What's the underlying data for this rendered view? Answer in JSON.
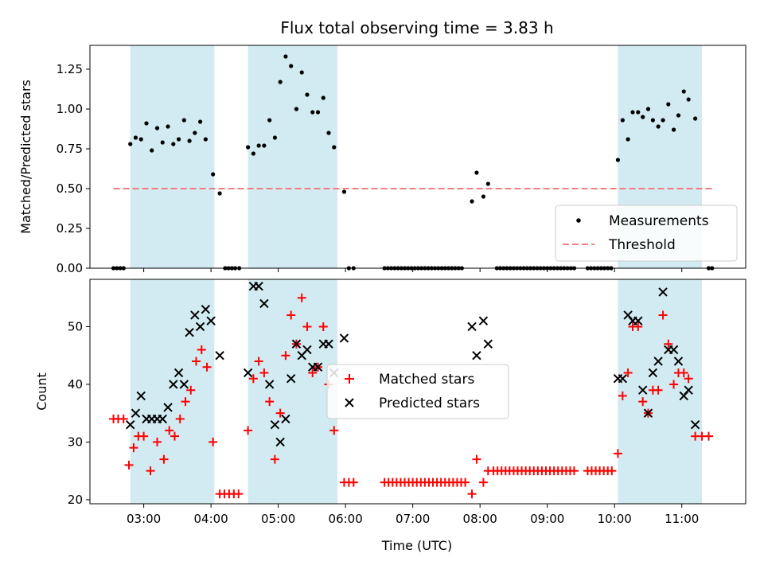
{
  "chart_data": {
    "type": "scatter",
    "title": "Flux total observing time = 3.83 h",
    "xlabel": "Time (UTC)",
    "x_ticks": [
      "03:00",
      "04:00",
      "05:00",
      "06:00",
      "07:00",
      "08:00",
      "09:00",
      "10:00",
      "11:00"
    ],
    "x_unit": "hours UTC",
    "xlim": [
      2.2,
      11.95
    ],
    "shaded_intervals": [
      [
        2.8,
        4.05
      ],
      [
        4.55,
        5.88
      ],
      [
        10.05,
        11.3
      ]
    ],
    "shade_color": "#add8e6",
    "top_panel": {
      "ylabel": "Matched/Predicted stars",
      "ylim": [
        0,
        1.4
      ],
      "y_ticks": [
        "0.00",
        "0.25",
        "0.50",
        "0.75",
        "1.00",
        "1.25"
      ],
      "threshold": {
        "value": 0.5,
        "x_range": [
          2.55,
          11.5
        ],
        "color": "#f08080"
      },
      "legend": {
        "placement": "lower right",
        "measurements_label": "Measurements",
        "threshold_label": "Threshold"
      },
      "measurements": [
        [
          2.55,
          0
        ],
        [
          2.6,
          0
        ],
        [
          2.65,
          0
        ],
        [
          2.7,
          0
        ],
        [
          2.8,
          0.78
        ],
        [
          2.88,
          0.82
        ],
        [
          2.96,
          0.81
        ],
        [
          3.04,
          0.91
        ],
        [
          3.12,
          0.74
        ],
        [
          3.2,
          0.88
        ],
        [
          3.28,
          0.79
        ],
        [
          3.36,
          0.89
        ],
        [
          3.44,
          0.78
        ],
        [
          3.52,
          0.81
        ],
        [
          3.6,
          0.93
        ],
        [
          3.68,
          0.8
        ],
        [
          3.76,
          0.85
        ],
        [
          3.84,
          0.92
        ],
        [
          3.92,
          0.81
        ],
        [
          4.03,
          0.59
        ],
        [
          4.13,
          0.47
        ],
        [
          4.21,
          0
        ],
        [
          4.26,
          0
        ],
        [
          4.31,
          0
        ],
        [
          4.36,
          0
        ],
        [
          4.42,
          0
        ],
        [
          4.55,
          0.76
        ],
        [
          4.63,
          0.72
        ],
        [
          4.71,
          0.77
        ],
        [
          4.79,
          0.77
        ],
        [
          4.87,
          0.93
        ],
        [
          4.95,
          0.82
        ],
        [
          5.03,
          1.17
        ],
        [
          5.11,
          1.33
        ],
        [
          5.19,
          1.27
        ],
        [
          5.27,
          1.0
        ],
        [
          5.35,
          1.23
        ],
        [
          5.43,
          1.09
        ],
        [
          5.51,
          0.98
        ],
        [
          5.59,
          0.98
        ],
        [
          5.67,
          1.07
        ],
        [
          5.75,
          0.85
        ],
        [
          5.83,
          0.76
        ],
        [
          5.98,
          0.48
        ],
        [
          6.05,
          0
        ],
        [
          6.12,
          0
        ],
        [
          6.58,
          0
        ],
        [
          6.63,
          0
        ],
        [
          6.68,
          0
        ],
        [
          6.73,
          0
        ],
        [
          6.78,
          0
        ],
        [
          6.83,
          0
        ],
        [
          6.88,
          0
        ],
        [
          6.93,
          0
        ],
        [
          6.98,
          0
        ],
        [
          7.03,
          0
        ],
        [
          7.08,
          0
        ],
        [
          7.13,
          0
        ],
        [
          7.18,
          0
        ],
        [
          7.23,
          0
        ],
        [
          7.28,
          0
        ],
        [
          7.33,
          0
        ],
        [
          7.38,
          0
        ],
        [
          7.43,
          0
        ],
        [
          7.48,
          0
        ],
        [
          7.53,
          0
        ],
        [
          7.58,
          0
        ],
        [
          7.63,
          0
        ],
        [
          7.68,
          0
        ],
        [
          7.73,
          0
        ],
        [
          7.88,
          0.42
        ],
        [
          7.95,
          0.6
        ],
        [
          8.05,
          0.45
        ],
        [
          8.12,
          0.53
        ],
        [
          8.25,
          0
        ],
        [
          8.3,
          0
        ],
        [
          8.35,
          0
        ],
        [
          8.4,
          0
        ],
        [
          8.45,
          0
        ],
        [
          8.5,
          0
        ],
        [
          8.55,
          0
        ],
        [
          8.6,
          0
        ],
        [
          8.65,
          0
        ],
        [
          8.7,
          0
        ],
        [
          8.75,
          0
        ],
        [
          8.8,
          0
        ],
        [
          8.85,
          0
        ],
        [
          8.9,
          0
        ],
        [
          8.95,
          0
        ],
        [
          9.0,
          0
        ],
        [
          9.05,
          0
        ],
        [
          9.1,
          0
        ],
        [
          9.15,
          0
        ],
        [
          9.2,
          0
        ],
        [
          9.25,
          0
        ],
        [
          9.3,
          0
        ],
        [
          9.35,
          0
        ],
        [
          9.4,
          0
        ],
        [
          9.6,
          0
        ],
        [
          9.65,
          0
        ],
        [
          9.7,
          0
        ],
        [
          9.75,
          0
        ],
        [
          9.8,
          0
        ],
        [
          9.85,
          0
        ],
        [
          9.9,
          0
        ],
        [
          9.95,
          0
        ],
        [
          10.05,
          0.68
        ],
        [
          10.12,
          0.93
        ],
        [
          10.2,
          0.81
        ],
        [
          10.27,
          0.98
        ],
        [
          10.35,
          0.98
        ],
        [
          10.42,
          0.95
        ],
        [
          10.5,
          1.0
        ],
        [
          10.57,
          0.93
        ],
        [
          10.65,
          0.89
        ],
        [
          10.72,
          0.93
        ],
        [
          10.8,
          1.03
        ],
        [
          10.88,
          0.87
        ],
        [
          10.95,
          0.96
        ],
        [
          11.03,
          1.11
        ],
        [
          11.1,
          1.06
        ],
        [
          11.2,
          0.94
        ],
        [
          11.4,
          0
        ],
        [
          11.45,
          0
        ]
      ]
    },
    "bottom_panel": {
      "ylabel": "Count",
      "ylim": [
        19.3,
        58.2
      ],
      "y_ticks": [
        "20",
        "30",
        "40",
        "50"
      ],
      "legend": {
        "placement": "center",
        "matched_label": "Matched stars",
        "predicted_label": "Predicted stars"
      },
      "matched_stars": [
        [
          2.55,
          34
        ],
        [
          2.62,
          34
        ],
        [
          2.7,
          34
        ],
        [
          2.78,
          26
        ],
        [
          2.85,
          29
        ],
        [
          2.92,
          31
        ],
        [
          3.0,
          31
        ],
        [
          3.1,
          25
        ],
        [
          3.2,
          30
        ],
        [
          3.3,
          27
        ],
        [
          3.38,
          32
        ],
        [
          3.46,
          31
        ],
        [
          3.54,
          34
        ],
        [
          3.62,
          37
        ],
        [
          3.7,
          39
        ],
        [
          3.78,
          44
        ],
        [
          3.86,
          46
        ],
        [
          3.94,
          43
        ],
        [
          4.03,
          30
        ],
        [
          4.13,
          21
        ],
        [
          4.2,
          21
        ],
        [
          4.27,
          21
        ],
        [
          4.34,
          21
        ],
        [
          4.41,
          21
        ],
        [
          4.55,
          32
        ],
        [
          4.63,
          41
        ],
        [
          4.71,
          44
        ],
        [
          4.79,
          42
        ],
        [
          4.87,
          37
        ],
        [
          4.95,
          27
        ],
        [
          5.03,
          35
        ],
        [
          5.11,
          45
        ],
        [
          5.19,
          52
        ],
        [
          5.27,
          47
        ],
        [
          5.35,
          55
        ],
        [
          5.43,
          50
        ],
        [
          5.51,
          42
        ],
        [
          5.59,
          43
        ],
        [
          5.67,
          50
        ],
        [
          5.75,
          40
        ],
        [
          5.83,
          32
        ],
        [
          5.98,
          23
        ],
        [
          6.05,
          23
        ],
        [
          6.12,
          23
        ],
        [
          6.58,
          23
        ],
        [
          6.64,
          23
        ],
        [
          6.7,
          23
        ],
        [
          6.76,
          23
        ],
        [
          6.82,
          23
        ],
        [
          6.88,
          23
        ],
        [
          6.94,
          23
        ],
        [
          7.0,
          23
        ],
        [
          7.06,
          23
        ],
        [
          7.12,
          23
        ],
        [
          7.18,
          23
        ],
        [
          7.24,
          23
        ],
        [
          7.3,
          23
        ],
        [
          7.36,
          23
        ],
        [
          7.42,
          23
        ],
        [
          7.48,
          23
        ],
        [
          7.54,
          23
        ],
        [
          7.6,
          23
        ],
        [
          7.66,
          23
        ],
        [
          7.72,
          23
        ],
        [
          7.78,
          23
        ],
        [
          7.88,
          21
        ],
        [
          7.95,
          27
        ],
        [
          8.05,
          23
        ],
        [
          8.12,
          25
        ],
        [
          8.2,
          25
        ],
        [
          8.26,
          25
        ],
        [
          8.32,
          25
        ],
        [
          8.38,
          25
        ],
        [
          8.44,
          25
        ],
        [
          8.5,
          25
        ],
        [
          8.56,
          25
        ],
        [
          8.62,
          25
        ],
        [
          8.68,
          25
        ],
        [
          8.74,
          25
        ],
        [
          8.8,
          25
        ],
        [
          8.86,
          25
        ],
        [
          8.92,
          25
        ],
        [
          8.98,
          25
        ],
        [
          9.04,
          25
        ],
        [
          9.1,
          25
        ],
        [
          9.16,
          25
        ],
        [
          9.22,
          25
        ],
        [
          9.28,
          25
        ],
        [
          9.34,
          25
        ],
        [
          9.4,
          25
        ],
        [
          9.6,
          25
        ],
        [
          9.66,
          25
        ],
        [
          9.72,
          25
        ],
        [
          9.78,
          25
        ],
        [
          9.84,
          25
        ],
        [
          9.9,
          25
        ],
        [
          9.96,
          25
        ],
        [
          10.05,
          28
        ],
        [
          10.12,
          38
        ],
        [
          10.2,
          42
        ],
        [
          10.27,
          50
        ],
        [
          10.35,
          50
        ],
        [
          10.42,
          37
        ],
        [
          10.5,
          35
        ],
        [
          10.57,
          39
        ],
        [
          10.65,
          39
        ],
        [
          10.72,
          52
        ],
        [
          10.8,
          47
        ],
        [
          10.88,
          40
        ],
        [
          10.95,
          42
        ],
        [
          11.03,
          42
        ],
        [
          11.1,
          41
        ],
        [
          11.2,
          31
        ],
        [
          11.3,
          31
        ],
        [
          11.4,
          31
        ]
      ],
      "predicted_stars": [
        [
          2.8,
          33
        ],
        [
          2.88,
          35
        ],
        [
          2.96,
          38
        ],
        [
          3.04,
          34
        ],
        [
          3.12,
          34
        ],
        [
          3.2,
          34
        ],
        [
          3.28,
          34
        ],
        [
          3.36,
          36
        ],
        [
          3.44,
          40
        ],
        [
          3.52,
          42
        ],
        [
          3.6,
          40
        ],
        [
          3.68,
          49
        ],
        [
          3.76,
          52
        ],
        [
          3.84,
          50
        ],
        [
          3.92,
          53
        ],
        [
          4.0,
          51
        ],
        [
          4.13,
          45
        ],
        [
          4.55,
          42
        ],
        [
          4.63,
          57
        ],
        [
          4.71,
          57
        ],
        [
          4.79,
          54
        ],
        [
          4.87,
          40
        ],
        [
          4.95,
          33
        ],
        [
          5.03,
          30
        ],
        [
          5.11,
          34
        ],
        [
          5.19,
          41
        ],
        [
          5.27,
          47
        ],
        [
          5.35,
          45
        ],
        [
          5.43,
          46
        ],
        [
          5.51,
          43
        ],
        [
          5.59,
          43
        ],
        [
          5.67,
          47
        ],
        [
          5.75,
          47
        ],
        [
          5.83,
          42
        ],
        [
          5.98,
          48
        ],
        [
          7.88,
          50
        ],
        [
          7.95,
          45
        ],
        [
          8.05,
          51
        ],
        [
          8.12,
          47
        ],
        [
          10.05,
          41
        ],
        [
          10.12,
          41
        ],
        [
          10.2,
          52
        ],
        [
          10.27,
          51
        ],
        [
          10.35,
          51
        ],
        [
          10.42,
          39
        ],
        [
          10.5,
          35
        ],
        [
          10.57,
          42
        ],
        [
          10.65,
          44
        ],
        [
          10.72,
          56
        ],
        [
          10.8,
          46
        ],
        [
          10.88,
          46
        ],
        [
          10.95,
          44
        ],
        [
          11.03,
          38
        ],
        [
          11.1,
          39
        ],
        [
          11.2,
          33
        ]
      ]
    }
  }
}
